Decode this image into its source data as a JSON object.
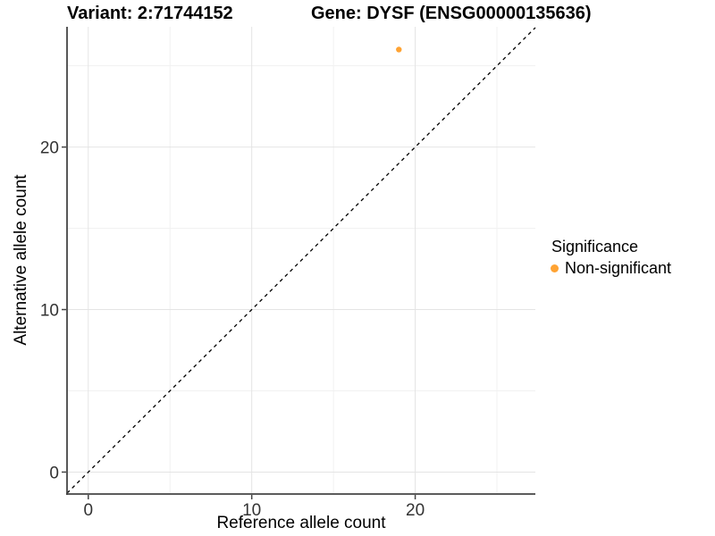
{
  "chart_data": {
    "type": "scatter",
    "title_left": "Variant: 2:71744152",
    "title_right": "Gene: DYSF (ENSG00000135636)",
    "xlabel": "Reference allele count",
    "ylabel": "Alternative allele count",
    "xlim": [
      -1.3,
      27.35
    ],
    "ylim": [
      -1.35,
      27.4
    ],
    "xticks": [
      0,
      10,
      20
    ],
    "yticks": [
      0,
      10,
      20
    ],
    "xticks_minor": [
      5,
      15,
      25
    ],
    "yticks_minor": [
      5,
      15,
      25
    ],
    "grid": "major+minor on white panel",
    "identity_line": {
      "slope": 1,
      "intercept": 0,
      "style": "dashed"
    },
    "series": [
      {
        "name": "Non-significant",
        "color": "#FFA333",
        "points": [
          [
            19,
            26
          ]
        ]
      }
    ],
    "legend": {
      "title": "Significance",
      "position": "right",
      "entries": [
        {
          "label": "Non-significant",
          "color": "#FFA333",
          "marker": "dot-icon"
        }
      ]
    }
  },
  "colors": {
    "background": "#FFFFFF",
    "grid_major": "#E4E4E4",
    "grid_minor": "#F1F1F1",
    "axis_line": "#454545",
    "tick_label": "#333333",
    "identity_line": "#000000",
    "point": "#FFA333"
  }
}
